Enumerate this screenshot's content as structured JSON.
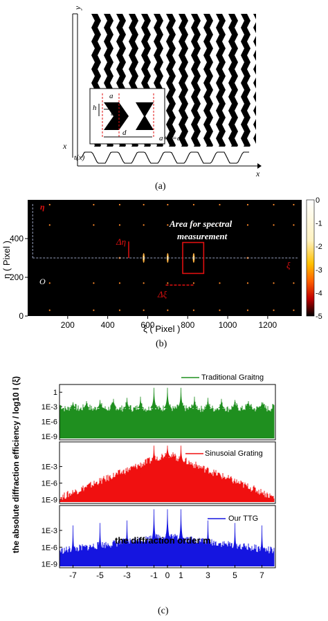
{
  "panel_a": {
    "label": "(a)",
    "axis_y": "y",
    "axis_x": "x",
    "axis_x_left": "x",
    "tx": "t(x)",
    "inset": {
      "a": "a",
      "b": "b",
      "h": "h",
      "d": "d",
      "eq": "a+b=d"
    }
  },
  "panel_b": {
    "label": "(b)",
    "eta": "η",
    "origin": "O",
    "xi": "ξ",
    "area": [
      "Area for spectral",
      "measurement"
    ],
    "delta_eta": "Δη",
    "delta_xi": "Δξ",
    "colorbar_ticks": [
      "0",
      "-1",
      "-2",
      "-3",
      "-4",
      "-5"
    ],
    "colors": {
      "bg": "#000000",
      "spot": "#ff8a2a",
      "box": "#e01010",
      "dashed": "#9aa4c0"
    }
  },
  "panel_c": {
    "label": "(c)",
    "colors": {
      "traditional": "#1f8f1f",
      "sinusoidal": "#f01010",
      "ttg": "#1515e0"
    }
  },
  "chart_data": [
    {
      "type": "heatmap",
      "xlabel": "ξ ( Pixel )",
      "ylabel": "η ( Pixel )",
      "xticks": [
        200,
        400,
        600,
        800,
        1000,
        1200
      ],
      "yticks": [
        0,
        200,
        400
      ],
      "xlim": [
        0,
        1370
      ],
      "ylim": [
        0,
        600
      ],
      "colorbar": {
        "min": -5,
        "max": 0,
        "ticks": [
          0,
          -1,
          -2,
          -3,
          -4,
          -5
        ]
      }
    },
    {
      "type": "line",
      "xlabel": "the diffraction order  m",
      "ylabel": "the absolute diffraction efficiency / log10 I (ξ)",
      "xticks": [
        -7,
        -5,
        -3,
        -1,
        0,
        1,
        3,
        5,
        7
      ],
      "xlim": [
        -8,
        8
      ],
      "series": [
        {
          "name": "Traditional Graitng",
          "yticks": [
            "1",
            "1E-3",
            "1E-6",
            "1E-9"
          ],
          "peak_orders": [
            -7,
            -6,
            -5,
            -4,
            -3,
            -2,
            -1,
            0,
            1,
            2,
            3,
            4,
            5,
            6,
            7
          ]
        },
        {
          "name": "Sinusoial Grating",
          "yticks": [
            "1",
            "1E-3",
            "1E-6",
            "1E-9"
          ],
          "peak_orders": [
            -7,
            -6,
            -5,
            -4,
            -3,
            -2,
            -1,
            0,
            1,
            2,
            3,
            4,
            5,
            6,
            7
          ]
        },
        {
          "name": "Our TTG",
          "yticks": [
            "1",
            "1E-3",
            "1E-6",
            "1E-9"
          ],
          "peak_orders": [
            -7,
            -5,
            -3,
            -1,
            0,
            1,
            3,
            5,
            7
          ]
        }
      ]
    }
  ]
}
